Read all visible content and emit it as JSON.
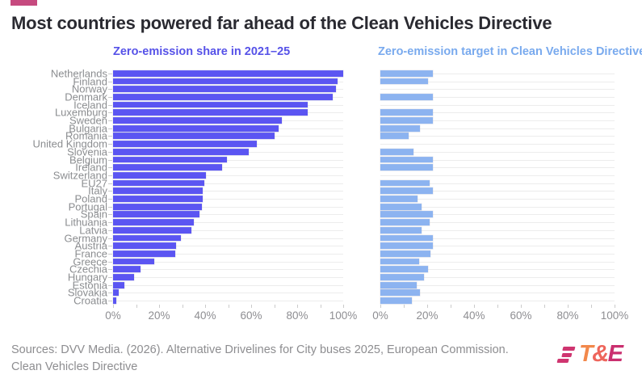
{
  "header": {
    "title": "Most countries powered far ahead of the Clean Vehicles Directive",
    "accent_color": "#c64a7f"
  },
  "chart_data": {
    "type": "bar",
    "orientation": "horizontal",
    "unit": "%",
    "grid": true,
    "xlim": [
      0,
      100
    ],
    "x_tick_labels": [
      "0%",
      "20%",
      "40%",
      "60%",
      "80%",
      "100%"
    ],
    "minor_tick_step_pct": 10,
    "categories": [
      "Netherlands",
      "Finland",
      "Norway",
      "Denmark",
      "Iceland",
      "Luxemburg",
      "Sweden",
      "Bulgaria",
      "Romania",
      "United Kingdom",
      "Slovenia",
      "Belgium",
      "Ireland",
      "Switzerland",
      "EU27",
      "Italy",
      "Poland",
      "Portugal",
      "Spain",
      "Lithuania",
      "Latvia",
      "Germany",
      "Austria",
      "France",
      "Greece",
      "Czechia",
      "Hungary",
      "Estonia",
      "Slovakia",
      "Croatia"
    ],
    "series": [
      {
        "name": "Zero-emission share in 2021–25",
        "color": "#5b55f2",
        "label_color": "#5652e8",
        "values": [
          100,
          97.5,
          97,
          95.5,
          84.5,
          84.5,
          73.5,
          72,
          70,
          62.5,
          59,
          49.5,
          47.5,
          40.5,
          39.5,
          39,
          39,
          38.5,
          37.5,
          35,
          34,
          29.5,
          27.5,
          27,
          18,
          12,
          9,
          5,
          2.5,
          1.5
        ]
      },
      {
        "name": "Zero-emission target in Clean Vehicles Directive",
        "color": "#8cb3f0",
        "label_color": "#79aaee",
        "values": [
          22.5,
          20.5,
          null,
          22.5,
          null,
          22.5,
          22.5,
          17,
          12,
          null,
          14,
          22.5,
          22.5,
          null,
          21,
          22.5,
          16,
          17.5,
          22.5,
          21,
          17.5,
          22.5,
          22.5,
          21.5,
          16.5,
          20.5,
          18.5,
          15.5,
          17,
          13.5
        ]
      }
    ]
  },
  "footer": {
    "source_line1": "Sources: DVV Media. (2026). Alternative Drivelines for City buses 2025, European Commission.",
    "source_line2": "Clean Vehicles Directive"
  },
  "logo": {
    "letters": [
      "T",
      "&",
      "E"
    ],
    "letter_colors": [
      "#f2884b",
      "#ee655b",
      "#ca2f6f"
    ],
    "stripe_color": "#cf3570"
  }
}
